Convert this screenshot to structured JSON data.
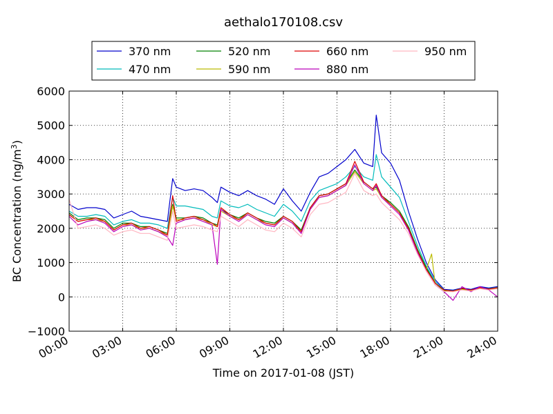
{
  "chart_data": {
    "type": "line",
    "title": "aethalo170108.csv",
    "xlabel": "Time on 2017-01-08 (JST)",
    "ylabel": "BC Concentration (ng/m³)",
    "ylabel_base": "BC Concentration (ng/m",
    "ylabel_sup": "3",
    "ylabel_tail": ")",
    "xlim": [
      0,
      24
    ],
    "ylim": [
      -1000,
      6000
    ],
    "x_ticks": [
      0,
      3,
      6,
      9,
      12,
      15,
      18,
      21,
      24
    ],
    "x_tick_labels": [
      "00:00",
      "03:00",
      "06:00",
      "09:00",
      "12:00",
      "15:00",
      "18:00",
      "21:00",
      "24:00"
    ],
    "y_ticks": [
      -1000,
      0,
      1000,
      2000,
      3000,
      4000,
      5000,
      6000
    ],
    "y_tick_labels": [
      "−1000",
      "0",
      "1000",
      "2000",
      "3000",
      "4000",
      "5000",
      "6000"
    ],
    "grid": true,
    "legend_position": "top-center",
    "x_unit": "hours since 00:00",
    "series": [
      {
        "name": "370 nm",
        "color": "#0000cc",
        "x": [
          0,
          0.5,
          1,
          1.5,
          2,
          2.5,
          3,
          3.5,
          4,
          4.5,
          5,
          5.5,
          5.8,
          6,
          6.5,
          7,
          7.5,
          8,
          8.3,
          8.5,
          9,
          9.5,
          10,
          10.5,
          11,
          11.5,
          12,
          12.5,
          13,
          13.5,
          14,
          14.5,
          15,
          15.5,
          16,
          16.5,
          17,
          17.2,
          17.5,
          18,
          18.5,
          19,
          19.5,
          20,
          20.5,
          21,
          21.5,
          22,
          22.5,
          23,
          23.5,
          24
        ],
        "y": [
          2700,
          2550,
          2600,
          2600,
          2550,
          2300,
          2400,
          2500,
          2350,
          2300,
          2250,
          2200,
          3450,
          3200,
          3100,
          3150,
          3100,
          2900,
          2750,
          3200,
          3050,
          2950,
          3100,
          2950,
          2850,
          2700,
          3150,
          2800,
          2500,
          3050,
          3500,
          3600,
          3800,
          4000,
          4300,
          3900,
          3800,
          5300,
          4200,
          3900,
          3400,
          2500,
          1700,
          1000,
          500,
          220,
          200,
          260,
          220,
          300,
          260,
          300
        ]
      },
      {
        "name": "470 nm",
        "color": "#00bbbb",
        "x": [
          0,
          0.5,
          1,
          1.5,
          2,
          2.5,
          3,
          3.5,
          4,
          4.5,
          5,
          5.5,
          5.8,
          6,
          6.5,
          7,
          7.5,
          8,
          8.3,
          8.5,
          9,
          9.5,
          10,
          10.5,
          11,
          11.5,
          12,
          12.5,
          13,
          13.5,
          14,
          14.5,
          15,
          15.5,
          16,
          16.5,
          17,
          17.2,
          17.5,
          18,
          18.5,
          19,
          19.5,
          20,
          20.5,
          21,
          21.5,
          22,
          22.5,
          23,
          23.5,
          24
        ],
        "y": [
          2500,
          2350,
          2350,
          2400,
          2350,
          2100,
          2200,
          2250,
          2150,
          2150,
          2100,
          2000,
          2900,
          2650,
          2650,
          2600,
          2550,
          2350,
          2300,
          2800,
          2650,
          2600,
          2700,
          2550,
          2450,
          2350,
          2700,
          2500,
          2200,
          2800,
          3100,
          3200,
          3300,
          3500,
          3800,
          3500,
          3400,
          4150,
          3500,
          3200,
          2900,
          2200,
          1500,
          900,
          450,
          200,
          180,
          250,
          200,
          270,
          240,
          280
        ]
      },
      {
        "name": "520 nm",
        "color": "#008000",
        "x": [
          0,
          0.5,
          1,
          1.5,
          2,
          2.5,
          3,
          3.5,
          4,
          4.5,
          5,
          5.5,
          5.8,
          6,
          6.5,
          7,
          7.5,
          8,
          8.3,
          8.5,
          9,
          9.5,
          10,
          10.5,
          11,
          11.5,
          12,
          12.5,
          13,
          13.5,
          14,
          14.5,
          15,
          15.5,
          16,
          16.5,
          17,
          17.2,
          17.5,
          18,
          18.5,
          19,
          19.5,
          20,
          20.5,
          21,
          21.5,
          22,
          22.5,
          23,
          23.5,
          24
        ],
        "y": [
          2450,
          2250,
          2300,
          2300,
          2250,
          2000,
          2150,
          2150,
          2050,
          2050,
          1950,
          1850,
          2700,
          2300,
          2300,
          2350,
          2300,
          2150,
          2100,
          2550,
          2400,
          2300,
          2450,
          2300,
          2200,
          2150,
          2350,
          2200,
          1950,
          2600,
          2950,
          3000,
          3150,
          3300,
          3700,
          3350,
          3150,
          3200,
          2950,
          2750,
          2500,
          2050,
          1400,
          850,
          400,
          180,
          170,
          230,
          190,
          260,
          230,
          270
        ]
      },
      {
        "name": "590 nm",
        "color": "#bbbb00",
        "x": [
          0,
          0.5,
          1,
          1.5,
          2,
          2.5,
          3,
          3.5,
          4,
          4.5,
          5,
          5.5,
          5.8,
          6,
          6.5,
          7,
          7.5,
          8,
          8.3,
          8.5,
          9,
          9.5,
          10,
          10.5,
          11,
          11.5,
          12,
          12.5,
          13,
          13.5,
          14,
          14.5,
          15,
          15.5,
          16,
          16.5,
          17,
          17.2,
          17.5,
          18,
          18.5,
          19,
          19.5,
          20,
          20.3,
          20.5,
          21,
          21.5,
          22,
          22.5,
          23,
          23.5,
          24
        ],
        "y": [
          2400,
          2200,
          2250,
          2250,
          2200,
          1950,
          2100,
          2100,
          2000,
          2000,
          1900,
          1800,
          2650,
          2250,
          2250,
          2300,
          2250,
          2100,
          2050,
          2500,
          2350,
          2250,
          2400,
          2250,
          2150,
          2100,
          2300,
          2150,
          1900,
          2550,
          2900,
          2950,
          3100,
          3250,
          3650,
          3300,
          3100,
          3150,
          2900,
          2700,
          2450,
          2000,
          1350,
          800,
          1250,
          350,
          170,
          160,
          220,
          180,
          250,
          220,
          260
        ]
      },
      {
        "name": "660 nm",
        "color": "#dd0000",
        "x": [
          0,
          0.5,
          1,
          1.5,
          2,
          2.5,
          3,
          3.5,
          4,
          4.5,
          5,
          5.5,
          5.8,
          6,
          6.5,
          7,
          7.5,
          8,
          8.3,
          8.5,
          9,
          9.5,
          10,
          10.5,
          11,
          11.5,
          12,
          12.5,
          13,
          13.5,
          14,
          14.5,
          15,
          15.5,
          16,
          16.5,
          17,
          17.2,
          17.5,
          18,
          18.5,
          19,
          19.5,
          20,
          20.5,
          21,
          21.5,
          22,
          22.5,
          23,
          23.5,
          24
        ],
        "y": [
          2400,
          2200,
          2250,
          2300,
          2200,
          1950,
          2100,
          2150,
          2000,
          2050,
          1950,
          1800,
          2950,
          2200,
          2300,
          2350,
          2250,
          2150,
          2050,
          2600,
          2400,
          2250,
          2450,
          2300,
          2150,
          2100,
          2350,
          2200,
          1900,
          2600,
          2950,
          3000,
          3150,
          3300,
          3950,
          3350,
          3150,
          3300,
          2950,
          2700,
          2450,
          2000,
          1350,
          800,
          400,
          200,
          170,
          250,
          200,
          270,
          230,
          270
        ]
      },
      {
        "name": "880 nm",
        "color": "#bb00bb",
        "x": [
          0,
          0.5,
          1,
          1.5,
          2,
          2.5,
          3,
          3.5,
          4,
          4.5,
          5,
          5.5,
          5.8,
          6,
          6.5,
          7,
          7.5,
          8,
          8.3,
          8.5,
          9,
          9.5,
          10,
          10.5,
          11,
          11.5,
          12,
          12.5,
          13,
          13.5,
          14,
          14.5,
          15,
          15.5,
          16,
          16.5,
          17,
          17.2,
          17.5,
          18,
          18.5,
          19,
          19.5,
          20,
          20.5,
          21,
          21.5,
          22,
          22.5,
          23,
          23.5,
          24
        ],
        "y": [
          2350,
          2100,
          2200,
          2250,
          2150,
          1900,
          2050,
          2100,
          1950,
          2000,
          1900,
          1750,
          1500,
          2150,
          2250,
          2300,
          2200,
          2100,
          950,
          2550,
          2350,
          2200,
          2400,
          2250,
          2100,
          2050,
          2300,
          2150,
          1850,
          2550,
          2900,
          2950,
          3100,
          3250,
          3850,
          3300,
          3100,
          3250,
          2900,
          2650,
          2400,
          1950,
          1300,
          750,
          350,
          150,
          -100,
          300,
          150,
          300,
          200,
          0
        ]
      },
      {
        "name": "950 nm",
        "color": "#ffb6c1",
        "x": [
          0,
          0.5,
          1,
          1.5,
          2,
          2.5,
          3,
          3.5,
          4,
          4.5,
          5,
          5.5,
          5.8,
          6,
          6.5,
          7,
          7.5,
          8,
          8.3,
          8.5,
          9,
          9.5,
          10,
          10.5,
          11,
          11.5,
          12,
          12.5,
          13,
          13.5,
          14,
          14.5,
          15,
          15.5,
          16,
          16.5,
          17,
          17.2,
          17.5,
          18,
          18.5,
          19,
          19.5,
          20,
          20.5,
          21,
          21.5,
          22,
          22.5,
          23,
          23.5,
          24
        ],
        "y": [
          2850,
          2000,
          2050,
          2100,
          2000,
          1800,
          1900,
          1950,
          1850,
          1850,
          1750,
          1650,
          2500,
          2000,
          2050,
          2100,
          2050,
          1950,
          1900,
          2350,
          2200,
          2050,
          2250,
          2100,
          1950,
          1900,
          2150,
          2000,
          1750,
          2400,
          2700,
          2750,
          2900,
          3050,
          3600,
          3100,
          2950,
          3000,
          2750,
          2500,
          2250,
          1850,
          1250,
          750,
          350,
          160,
          150,
          200,
          170,
          240,
          200,
          240
        ]
      }
    ]
  }
}
